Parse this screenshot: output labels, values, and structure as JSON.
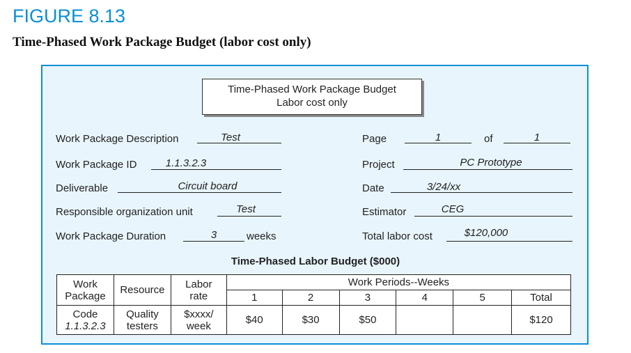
{
  "figure": {
    "label": "FIGURE 8.13",
    "caption": "Time-Phased Work Package Budget (labor cost only)"
  },
  "form": {
    "title_line1": "Time-Phased Work Package Budget",
    "title_line2": "Labor cost only",
    "left_fields": [
      {
        "label": "Work Package Description",
        "value": "Test"
      },
      {
        "label": "Work Package ID",
        "value": "1.1.3.2.3"
      },
      {
        "label": "Deliverable",
        "value": "Circuit board"
      },
      {
        "label": "Responsible organization unit",
        "value": "Test"
      },
      {
        "label": "Work Package Duration",
        "value": "3",
        "suffix": "weeks"
      }
    ],
    "right_fields": {
      "page_label": "Page",
      "page_value": "1",
      "of_label": "of",
      "of_value": "1",
      "project_label": "Project",
      "project_value": "PC Prototype",
      "date_label": "Date",
      "date_value": "3/24/xx",
      "estimator_label": "Estimator",
      "estimator_value": "CEG",
      "total_label": "Total labor cost",
      "total_value": "$120,000"
    }
  },
  "budget_table": {
    "subtitle": "Time-Phased Labor Budget ($000)",
    "headers": {
      "work_package_line1": "Work",
      "work_package_line2": "Package",
      "work_package_line3": "Code",
      "resource": "Resource",
      "labor_rate_line1": "Labor",
      "labor_rate_line2": "rate",
      "work_periods": "Work Periods--Weeks",
      "periods": [
        "1",
        "2",
        "3",
        "4",
        "5"
      ],
      "total": "Total"
    },
    "row": {
      "code": "1.1.3.2.3",
      "resource_line1": "Quality",
      "resource_line2": "testers",
      "rate_line1": "$xxxx/",
      "rate_line2": "week",
      "values": [
        "$40",
        "$30",
        "$50",
        "",
        ""
      ],
      "total": "$120"
    }
  }
}
